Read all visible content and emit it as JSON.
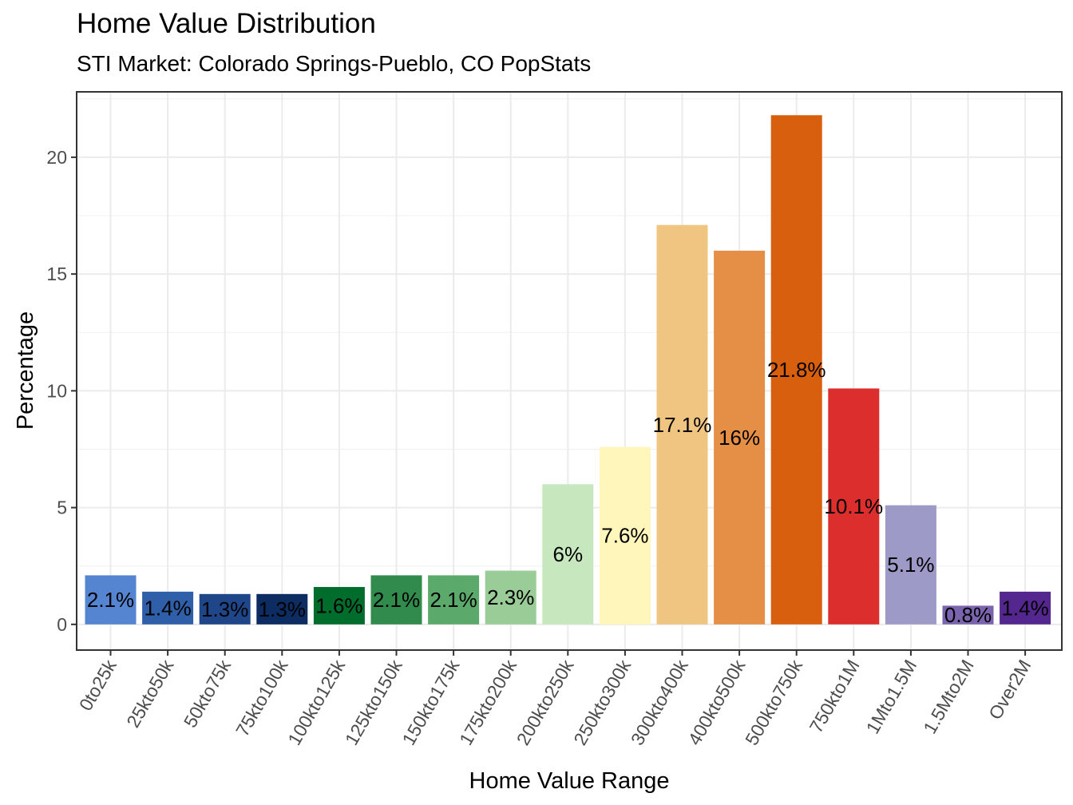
{
  "chart_data": {
    "type": "bar",
    "title": "Home Value Distribution",
    "subtitle": "STI Market: Colorado Springs-Pueblo, CO PopStats",
    "xlabel": "Home Value Range",
    "ylabel": "Percentage",
    "categories": [
      "0to25k",
      "25kto50k",
      "50kto75k",
      "75kto100k",
      "100kto125k",
      "125kto150k",
      "150kto175k",
      "175kto200k",
      "200kto250k",
      "250kto300k",
      "300kto400k",
      "400kto500k",
      "500kto750k",
      "750kto1M",
      "1Mto1.5M",
      "1.5Mto2M",
      "Over2M"
    ],
    "values": [
      2.1,
      1.4,
      1.3,
      1.3,
      1.6,
      2.1,
      2.1,
      2.3,
      6.0,
      7.6,
      17.1,
      16.0,
      21.8,
      10.1,
      5.1,
      0.8,
      1.4
    ],
    "data_labels": [
      "2.1%",
      "1.4%",
      "1.3%",
      "1.3%",
      "1.6%",
      "2.1%",
      "2.1%",
      "2.3%",
      "6%",
      "7.6%",
      "17.1%",
      "16%",
      "21.8%",
      "10.1%",
      "5.1%",
      "0.8%",
      "1.4%"
    ],
    "colors": [
      "#5585D1",
      "#2F5FA8",
      "#1F4689",
      "#0D2C61",
      "#006D2C",
      "#318B4D",
      "#5BAA6B",
      "#99CC96",
      "#C7E8BF",
      "#FFF6BC",
      "#F0C481",
      "#E48F45",
      "#D85F0E",
      "#DC2E2C",
      "#9E9AC7",
      "#7A64AE",
      "#54278F"
    ],
    "y_ticks": [
      0,
      5,
      10,
      15,
      20
    ],
    "ylim": [
      -1.1,
      22.8
    ],
    "grid": true,
    "legend": "none"
  }
}
